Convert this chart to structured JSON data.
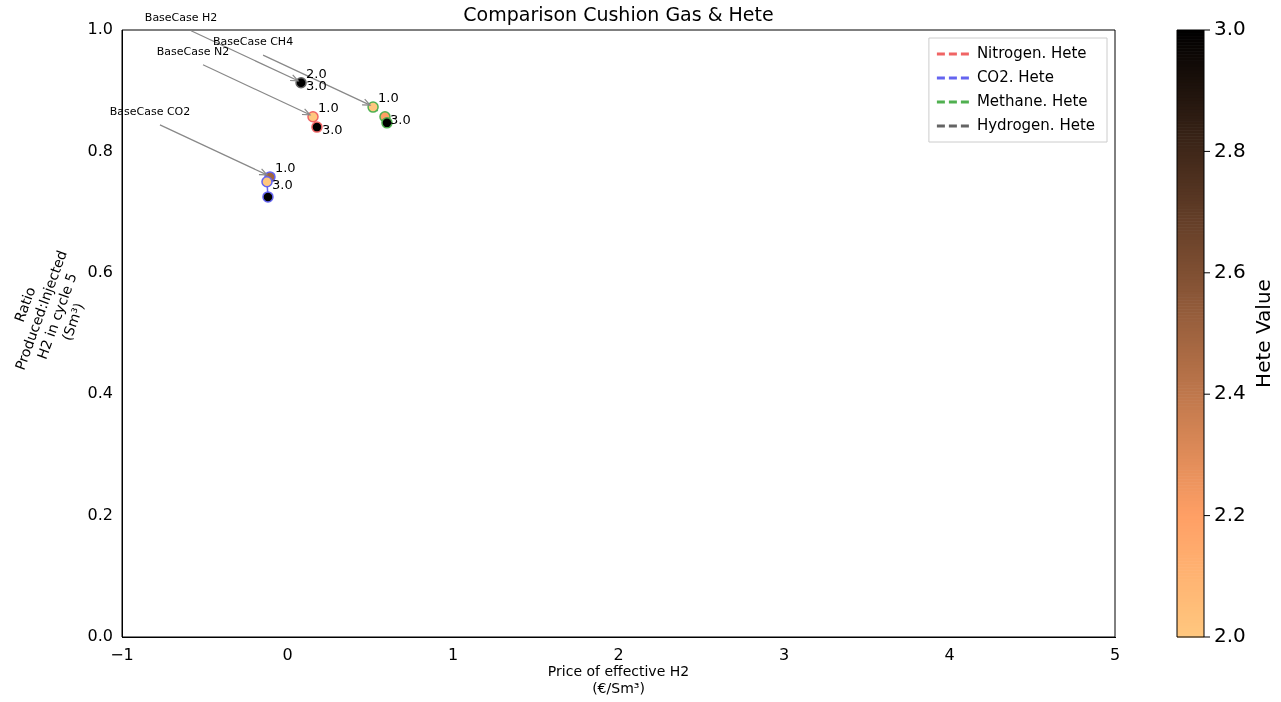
{
  "chart_data": {
    "type": "scatter",
    "title": "Comparison Cushion Gas & Hete",
    "xlabel": "Price of effective H2\n(€/Sm³)",
    "ylabel": "Ratio\nProduced:Injected\nH2 in cycle 5\n(Sm³)",
    "clabel": "Hete Value",
    "xlim": [
      -1,
      5
    ],
    "xticks": [
      {
        "value": -1,
        "label": "−1"
      },
      0,
      1,
      2,
      3,
      4,
      5
    ],
    "ylim": [
      0,
      1
    ],
    "yticks": [
      {
        "value": 0,
        "label": "0.0"
      },
      {
        "value": 0.2,
        "label": "0.2"
      },
      {
        "value": 0.4,
        "label": "0.4"
      },
      {
        "value": 0.6,
        "label": "0.6"
      },
      {
        "value": 0.8,
        "label": "0.8"
      },
      {
        "value": 1,
        "label": "1.0"
      }
    ],
    "clim": [
      2,
      3
    ],
    "cticks": [
      {
        "value": 2,
        "label": "2.0"
      },
      {
        "value": 2.2,
        "label": "2.2"
      },
      {
        "value": 2.4,
        "label": "2.4"
      },
      {
        "value": 2.6,
        "label": "2.6"
      },
      {
        "value": 2.8,
        "label": "2.8"
      },
      {
        "value": 3,
        "label": "3.0"
      }
    ],
    "legend": "top right",
    "marker": "circle",
    "line_style": "dashed",
    "series": [
      {
        "name": "Nitrogen. Hete",
        "color": "#f06464",
        "x": [
          0.154,
          0.178
        ],
        "values": [
          0.857,
          0.84
        ],
        "cvalues": [
          2,
          3
        ]
      },
      {
        "name": "CO2. Hete",
        "color": "#6464f0",
        "x": [
          -0.106,
          -0.124,
          -0.118
        ],
        "values": [
          0.758,
          0.75,
          0.725
        ],
        "cvalues": [
          2.5,
          2,
          3
        ]
      },
      {
        "name": "Methane. Hete",
        "color": "#50b050",
        "x": [
          0.517,
          0.589,
          0.601
        ],
        "values": [
          0.873,
          0.857,
          0.847
        ],
        "cvalues": [
          2,
          2.2,
          3
        ]
      },
      {
        "name": "Hydrogen. Hete",
        "color": "#646464",
        "x": [
          0.082
        ],
        "values": [
          0.913
        ],
        "cvalues": [
          3
        ]
      }
    ],
    "annotations": [
      {
        "text": "BaseCase H2",
        "x": 0.082,
        "y": 0.913
      },
      {
        "text": "BaseCase N2",
        "x": 0.154,
        "y": 0.857
      },
      {
        "text": "BaseCase CH4",
        "x": 0.517,
        "y": 0.873
      },
      {
        "text": "BaseCase CO2",
        "x": -0.106,
        "y": 0.758
      },
      {
        "text": "2.0",
        "x": 0.082,
        "y": 0.913
      },
      {
        "text": "3.0",
        "x": 0.082,
        "y": 0.913
      },
      {
        "text": "1.0",
        "x": 0.154,
        "y": 0.857
      },
      {
        "text": "3.0",
        "x": 0.178,
        "y": 0.84
      },
      {
        "text": "1.0",
        "x": -0.106,
        "y": 0.758
      },
      {
        "text": "3.0",
        "x": -0.124,
        "y": 0.75
      },
      {
        "text": "1.0",
        "x": 0.517,
        "y": 0.873
      },
      {
        "text": "3.0",
        "x": 0.589,
        "y": 0.857
      }
    ]
  }
}
